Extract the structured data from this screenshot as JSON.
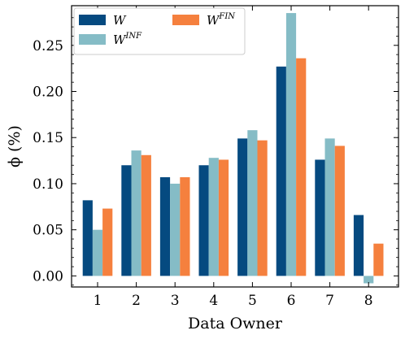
{
  "chart_data": {
    "type": "bar",
    "title": "",
    "xlabel": "Data Owner",
    "ylabel": "ϕ (%)",
    "categories": [
      "1",
      "2",
      "3",
      "4",
      "5",
      "6",
      "7",
      "8"
    ],
    "ylim": [
      -0.012,
      0.293
    ],
    "yticks": [
      0.0,
      0.05,
      0.1,
      0.15,
      0.2,
      0.25
    ],
    "ytick_labels": [
      "0.00",
      "0.05",
      "0.10",
      "0.15",
      "0.20",
      "0.25"
    ],
    "grid": false,
    "legend_position": "top-left",
    "series": [
      {
        "name": "W",
        "base": "W",
        "sup": "",
        "color": "#054a80",
        "values": [
          0.082,
          0.12,
          0.107,
          0.12,
          0.149,
          0.227,
          0.126,
          0.066
        ]
      },
      {
        "name": "W^INF",
        "base": "W",
        "sup": "INF",
        "color": "#85bcc6",
        "values": [
          0.05,
          0.136,
          0.1,
          0.128,
          0.158,
          0.285,
          0.149,
          -0.008
        ]
      },
      {
        "name": "W^FIN",
        "base": "W",
        "sup": "FIN",
        "color": "#f5803e",
        "values": [
          0.073,
          0.131,
          0.107,
          0.126,
          0.147,
          0.236,
          0.141,
          0.035
        ]
      }
    ]
  }
}
